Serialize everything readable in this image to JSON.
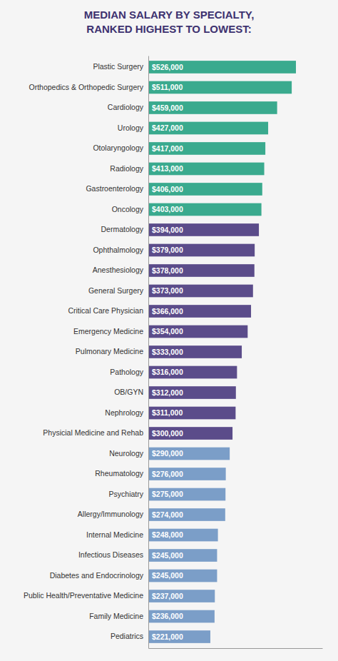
{
  "chart_data": {
    "type": "bar",
    "orientation": "horizontal",
    "title": "MEDIAN SALARY BY SPECIALTY,\nRANKED HIGHEST TO LOWEST:",
    "categories": [
      "Plastic Surgery",
      "Orthopedics & Orthopedic Surgery",
      "Cardiology",
      "Urology",
      "Otolaryngology",
      "Radiology",
      "Gastroenterology",
      "Oncology",
      "Dermatology",
      "Ophthalmology",
      "Anesthesiology",
      "General Surgery",
      "Critical Care Physician",
      "Emergency Medicine",
      "Pulmonary Medicine",
      "Pathology",
      "OB/GYN",
      "Nephrology",
      "Physicial Medicine and Rehab",
      "Neurology",
      "Rheumatology",
      "Psychiatry",
      "Allergy/Immunology",
      "Internal Medicine",
      "Infectious Diseases",
      "Diabetes and Endocrinology",
      "Public Health/Preventative Medicine",
      "Family Medicine",
      "Pediatrics"
    ],
    "values": [
      526000,
      511000,
      459000,
      427000,
      417000,
      413000,
      406000,
      403000,
      394000,
      379000,
      378000,
      373000,
      366000,
      354000,
      333000,
      316000,
      312000,
      311000,
      300000,
      290000,
      276000,
      275000,
      274000,
      248000,
      245000,
      245000,
      237000,
      236000,
      221000
    ],
    "value_labels": [
      "$526,000",
      "$511,000",
      "$459,000",
      "$427,000",
      "$417,000",
      "$413,000",
      "$406,000",
      "$403,000",
      "$394,000",
      "$379,000",
      "$378,000",
      "$373,000",
      "$366,000",
      "$354,000",
      "$333,000",
      "$316,000",
      "$312,000",
      "$311,000",
      "$300,000",
      "$290,000",
      "$276,000",
      "$275,000",
      "$274,000",
      "$248,000",
      "$245,000",
      "$245,000",
      "$237,000",
      "$236,000",
      "$221,000"
    ],
    "colors": [
      "#3aaa8e",
      "#3aaa8e",
      "#3aaa8e",
      "#3aaa8e",
      "#3aaa8e",
      "#3aaa8e",
      "#3aaa8e",
      "#3aaa8e",
      "#5b4c8a",
      "#5b4c8a",
      "#5b4c8a",
      "#5b4c8a",
      "#5b4c8a",
      "#5b4c8a",
      "#5b4c8a",
      "#5b4c8a",
      "#5b4c8a",
      "#5b4c8a",
      "#5b4c8a",
      "#7b9ec8",
      "#7b9ec8",
      "#7b9ec8",
      "#7b9ec8",
      "#7b9ec8",
      "#7b9ec8",
      "#7b9ec8",
      "#7b9ec8",
      "#7b9ec8",
      "#7b9ec8"
    ],
    "xlim": [
      0,
      620000
    ],
    "data_labels": true,
    "tick_labels": "y"
  }
}
